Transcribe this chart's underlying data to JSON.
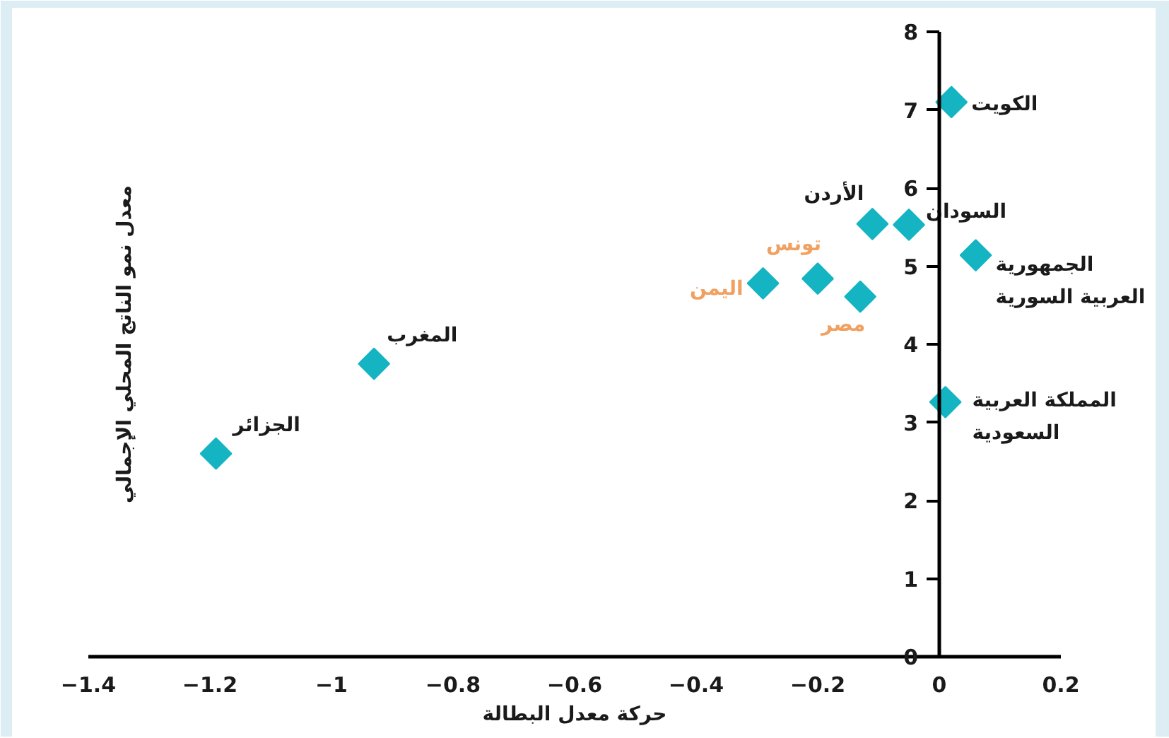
{
  "chart_data": {
    "type": "scatter",
    "xlabel": "حركة معدل البطالة",
    "ylabel": "معدل نمو الناتج المحلي الإجمالي",
    "marker": "diamond",
    "grid": false,
    "xlim": [
      -1.4,
      0.2
    ],
    "ylim": [
      0,
      8
    ],
    "xticks": [
      -1.4,
      -1.2,
      -1,
      -0.8,
      -0.6,
      -0.4,
      -0.2,
      0,
      0.2
    ],
    "yticks": [
      0,
      1,
      2,
      3,
      4,
      5,
      6,
      7,
      8
    ],
    "series": [
      {
        "color": "#14b4c3",
        "x": [
          -1.19,
          -0.93,
          -0.11,
          -0.05,
          0.02,
          0.06,
          0.01
        ],
        "values": [
          2.6,
          3.75,
          5.54,
          5.53,
          7.1,
          5.14,
          3.26
        ],
        "value_labels": [
          "الجزائر",
          "المغرب",
          "الأردن",
          "السودان",
          "الكويت",
          "الجمهورية\nالعربية السورية",
          "المملكة العربية\nالسعودية"
        ]
      },
      {
        "color": "#14b4c3",
        "x": [
          -0.29,
          -0.2,
          -0.13
        ],
        "values": [
          4.78,
          4.84,
          4.61
        ],
        "value_labels": [
          "اليمن",
          "تونس",
          "مصر"
        ]
      }
    ]
  }
}
